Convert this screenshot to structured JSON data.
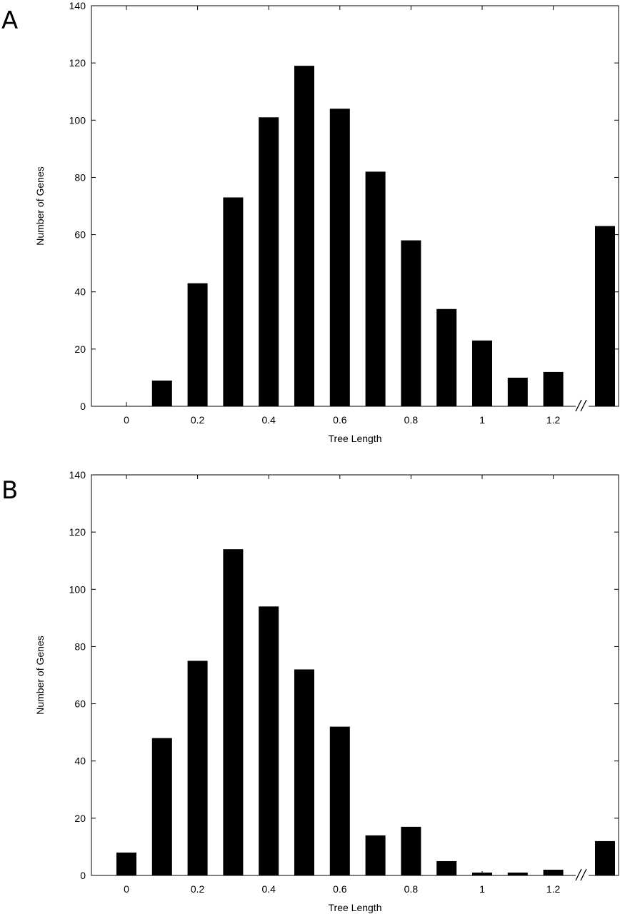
{
  "chart_data": [
    {
      "panel": "A",
      "type": "bar",
      "xlabel": "Tree Length",
      "ylabel": "Number of Genes",
      "ylim": [
        0,
        140
      ],
      "yticks": [
        "0",
        "20",
        "40",
        "60",
        "80",
        "100",
        "120",
        "140"
      ],
      "xticks": [
        "0",
        "0.2",
        "0.4",
        "0.6",
        "0.8",
        "1",
        "1.2"
      ],
      "axis_break": true,
      "grid": false,
      "color": "#000000",
      "categories": [
        0,
        0.1,
        0.2,
        0.3,
        0.4,
        0.5,
        0.6,
        0.7,
        0.8,
        0.9,
        1.0,
        1.1,
        1.2,
        ">1.3"
      ],
      "values": [
        0,
        9,
        43,
        73,
        101,
        119,
        104,
        82,
        58,
        34,
        23,
        10,
        12,
        63
      ]
    },
    {
      "panel": "B",
      "type": "bar",
      "xlabel": "Tree Length",
      "ylabel": "Number of Genes",
      "ylim": [
        0,
        140
      ],
      "yticks": [
        "0",
        "20",
        "40",
        "60",
        "80",
        "100",
        "120",
        "140"
      ],
      "xticks": [
        "0",
        "0.2",
        "0.4",
        "0.6",
        "0.8",
        "1",
        "1.2"
      ],
      "axis_break": true,
      "grid": false,
      "color": "#000000",
      "categories": [
        0,
        0.1,
        0.2,
        0.3,
        0.4,
        0.5,
        0.6,
        0.7,
        0.8,
        0.9,
        1.0,
        1.1,
        1.2,
        ">1.3"
      ],
      "values": [
        8,
        48,
        75,
        114,
        94,
        72,
        52,
        14,
        17,
        5,
        1,
        1,
        2,
        12
      ]
    }
  ]
}
